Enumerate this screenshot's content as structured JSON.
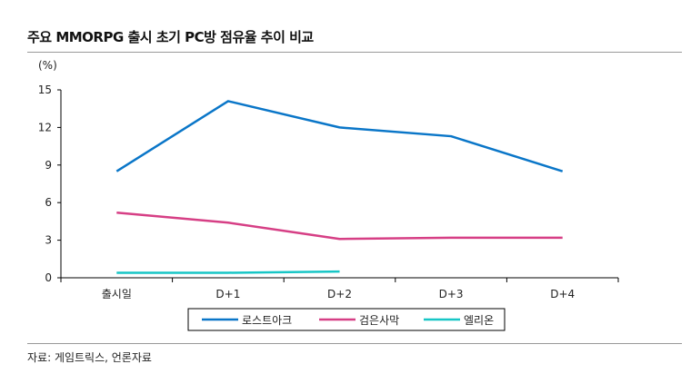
{
  "title": "주요 MMORPG 출시 초기 PC방 점유율 추이 비교",
  "source": "자료: 게임트릭스, 언론자료",
  "chart_data": {
    "type": "line",
    "title": "주요 MMORPG 출시 초기 PC방 점유율 추이 비교",
    "ylabel": "(%)",
    "xlabel": "",
    "categories": [
      "출시일",
      "D+1",
      "D+2",
      "D+3",
      "D+4"
    ],
    "ylim": [
      0,
      15
    ],
    "yticks": [
      0,
      3,
      6,
      9,
      12,
      15
    ],
    "grid": false,
    "legend": "bottom",
    "series": [
      {
        "name": "로스트아크",
        "color": "#0a76c8",
        "values": [
          8.5,
          14.1,
          12.0,
          11.3,
          8.5
        ]
      },
      {
        "name": "검은사막",
        "color": "#d63f85",
        "values": [
          5.2,
          4.4,
          3.1,
          3.2,
          3.2
        ]
      },
      {
        "name": "엘리온",
        "color": "#17c6c6",
        "values": [
          0.4,
          0.4,
          0.5,
          null,
          null
        ]
      }
    ]
  }
}
